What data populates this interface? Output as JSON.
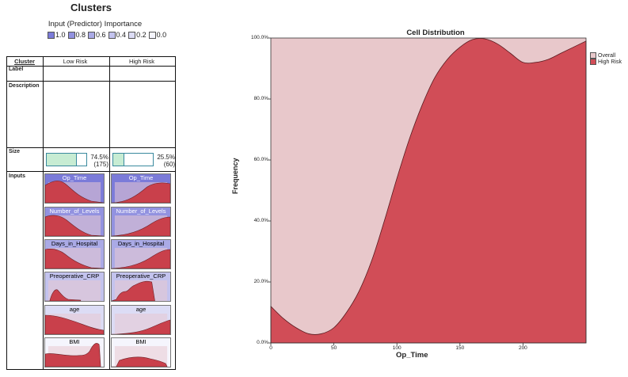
{
  "left_panel": {
    "title": "Clusters",
    "importance_title": "Input (Predictor) Importance",
    "legend": [
      {
        "label": "1.0",
        "color": "#7b7bd9"
      },
      {
        "label": "0.8",
        "color": "#9292e0"
      },
      {
        "label": "0.6",
        "color": "#aaaae6"
      },
      {
        "label": "0.4",
        "color": "#c3c3ee"
      },
      {
        "label": "0.2",
        "color": "#dcdcf5"
      },
      {
        "label": "0.0",
        "color": "#f5f5fd"
      }
    ],
    "table": {
      "header": {
        "cluster": "Cluster",
        "col1": "Low Risk",
        "col2": "High Risk"
      },
      "rows": {
        "label": "Label",
        "description": "Description",
        "size": "Size",
        "inputs": "Inputs"
      },
      "sizes": [
        {
          "percent": "74.5%",
          "count": "(175)",
          "fraction": 0.745
        },
        {
          "percent": "25.5%",
          "count": "(60)",
          "fraction": 0.255
        }
      ],
      "inputs": [
        {
          "name": "Op_Time",
          "importance": 1.0
        },
        {
          "name": "Number_of_Levels",
          "importance": 0.8
        },
        {
          "name": "Days_in_Hospital",
          "importance": 0.6
        },
        {
          "name": "Preoperative_CRP",
          "importance": 0.4
        },
        {
          "name": "age",
          "importance": 0.2
        },
        {
          "name": "BMI",
          "importance": 0.1
        }
      ]
    }
  },
  "chart_data": {
    "type": "area",
    "title": "Cell Distribution",
    "xlabel": "Op_Time",
    "ylabel": "Frequency",
    "xlim": [
      0,
      250
    ],
    "ylim": [
      0,
      100
    ],
    "x_ticks": [
      "0",
      "50",
      "100",
      "150",
      "200"
    ],
    "y_ticks": [
      "0.0%",
      "20.0%",
      "40.0%",
      "60.0%",
      "80.0%",
      "100.0%"
    ],
    "legend": [
      "Overall",
      "High Risk"
    ],
    "colors": {
      "overall": "#e8c8cb",
      "high_risk": "#d14d57"
    },
    "x": [
      0,
      10,
      20,
      30,
      40,
      50,
      60,
      70,
      80,
      90,
      100,
      110,
      120,
      130,
      140,
      150,
      160,
      170,
      180,
      190,
      200,
      210,
      220,
      230,
      240,
      250
    ],
    "series": [
      {
        "name": "Overall",
        "values": [
          100,
          100,
          100,
          100,
          100,
          100,
          100,
          100,
          100,
          100,
          100,
          100,
          100,
          100,
          100,
          100,
          100,
          100,
          100,
          100,
          100,
          100,
          100,
          100,
          100,
          100
        ]
      },
      {
        "name": "High Risk",
        "values": [
          12,
          8,
          5,
          3,
          3,
          5,
          10,
          17,
          27,
          40,
          54,
          67,
          78,
          87,
          93,
          97,
          99.5,
          99.7,
          98,
          95,
          92,
          92,
          93,
          95,
          97,
          99
        ]
      }
    ]
  }
}
